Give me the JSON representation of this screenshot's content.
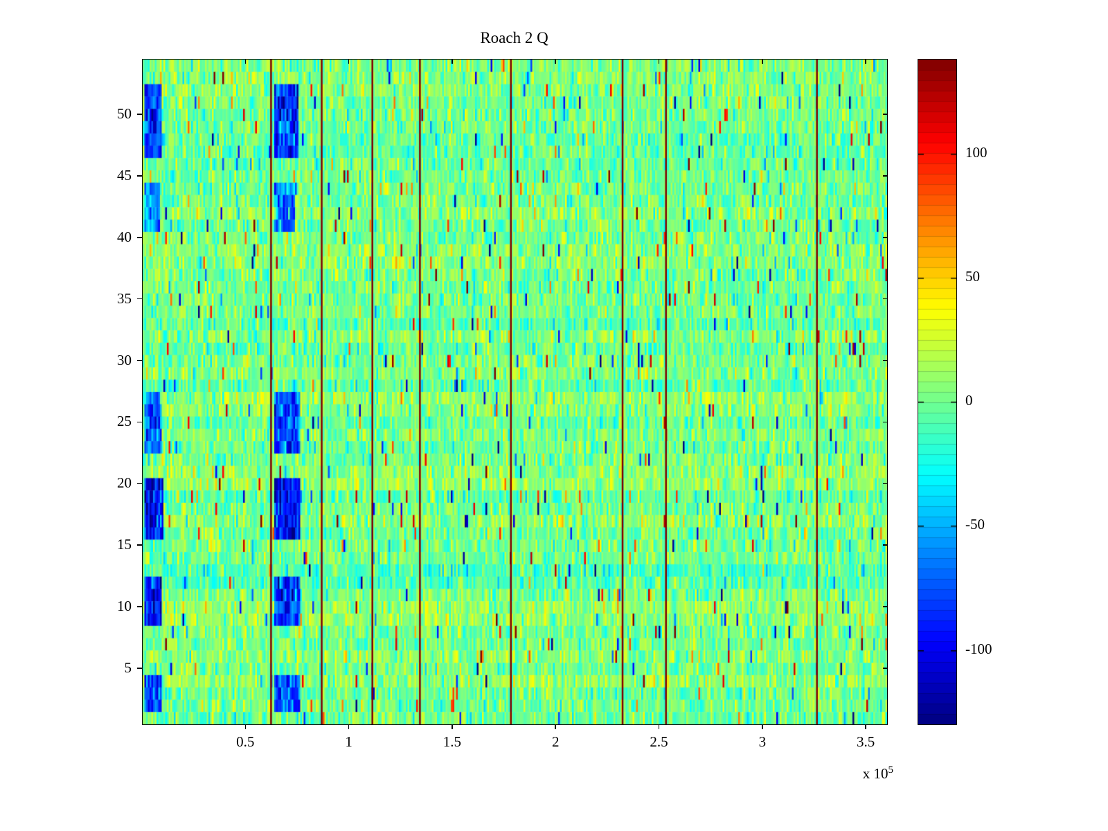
{
  "chart_data": {
    "type": "heatmap",
    "title": "Roach 2 Q",
    "colormap": "jet",
    "caxis": [
      -130,
      138
    ],
    "x_range": [
      0,
      360000
    ],
    "y_range": [
      1,
      54
    ],
    "x_ticks": [
      50000,
      100000,
      150000,
      200000,
      250000,
      300000,
      350000
    ],
    "x_tick_labels": [
      "0.5",
      "1",
      "1.5",
      "2",
      "2.5",
      "3",
      "3.5"
    ],
    "x_exponent_base": "x 10",
    "x_exponent_power": "5",
    "y_ticks": [
      5,
      10,
      15,
      20,
      25,
      30,
      35,
      40,
      45,
      50
    ],
    "y_tick_labels": [
      "5",
      "10",
      "15",
      "20",
      "25",
      "30",
      "35",
      "40",
      "45",
      "50"
    ],
    "colorbar_ticks": [
      100,
      50,
      0,
      -50,
      -100
    ],
    "colorbar_tick_labels": [
      "100",
      "50",
      "0",
      "-50",
      "-100"
    ],
    "legend": "none",
    "grid": false,
    "noise": {
      "mean": 2,
      "std": 15,
      "row_offset_std": 4,
      "spike_prob": 0.035,
      "spike_scale": 140,
      "seed": 1337
    },
    "vertical_lines_x": [
      62000,
      86500,
      111000,
      134000,
      178000,
      232000,
      253000,
      326000
    ],
    "low_patches": [
      {
        "x": [
          500,
          9000
        ],
        "rows": [
          2,
          4
        ],
        "depth": -70
      },
      {
        "x": [
          64000,
          76000
        ],
        "rows": [
          2,
          4
        ],
        "depth": -75
      },
      {
        "x": [
          500,
          9500
        ],
        "rows": [
          9,
          12
        ],
        "depth": -90
      },
      {
        "x": [
          64000,
          76000
        ],
        "rows": [
          9,
          12
        ],
        "depth": -85
      },
      {
        "x": [
          500,
          10000
        ],
        "rows": [
          16,
          20
        ],
        "depth": -100
      },
      {
        "x": [
          64000,
          76000
        ],
        "rows": [
          16,
          20
        ],
        "depth": -95
      },
      {
        "x": [
          500,
          9000
        ],
        "rows": [
          23,
          27
        ],
        "depth": -70
      },
      {
        "x": [
          64000,
          76000
        ],
        "rows": [
          23,
          27
        ],
        "depth": -75
      },
      {
        "x": [
          500,
          8000
        ],
        "rows": [
          41,
          44
        ],
        "depth": -55
      },
      {
        "x": [
          64000,
          74000
        ],
        "rows": [
          41,
          44
        ],
        "depth": -60
      },
      {
        "x": [
          500,
          9000
        ],
        "rows": [
          47,
          52
        ],
        "depth": -80
      },
      {
        "x": [
          64000,
          75000
        ],
        "rows": [
          47,
          52
        ],
        "depth": -85
      }
    ]
  }
}
